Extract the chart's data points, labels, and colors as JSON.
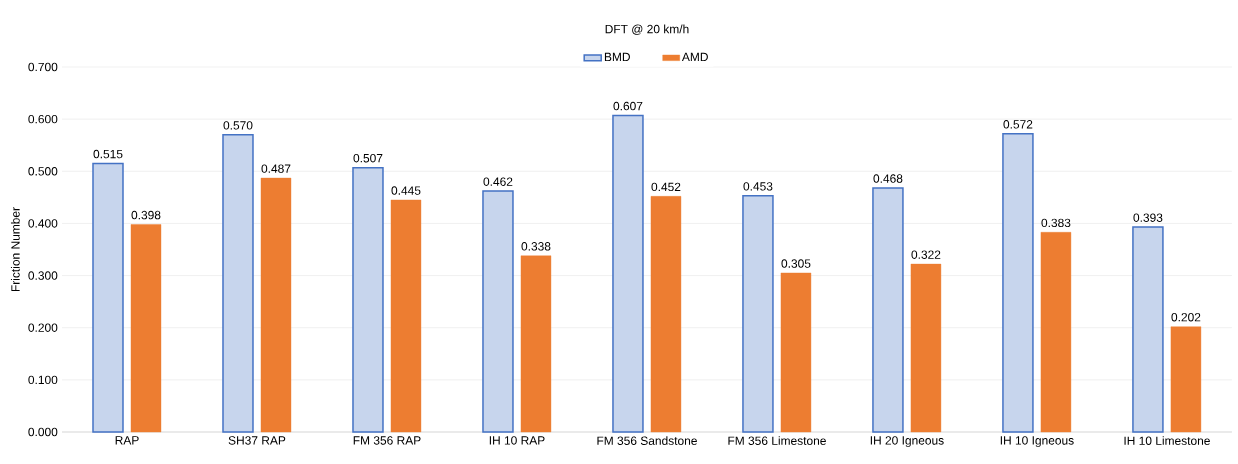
{
  "chart_data": {
    "type": "bar",
    "title": "DFT @ 20 km/h",
    "ylabel": "Friction Number",
    "categories": [
      "RAP",
      "SH37 RAP",
      "FM 356 RAP",
      "IH 10 RAP",
      "FM 356 Sandstone",
      "FM 356 Limestone",
      "IH 20 Igneous",
      "IH 10 Igneous",
      "IH 10 Limestone"
    ],
    "series": [
      {
        "name": "BMD",
        "color": "#4472c4",
        "values": [
          0.515,
          0.57,
          0.507,
          0.462,
          0.607,
          0.453,
          0.468,
          0.572,
          0.393
        ],
        "value_labels": [
          "0.515",
          "0.570",
          "0.507",
          "0.462",
          "0.607",
          "0.453",
          "0.468",
          "0.572",
          "0.393"
        ]
      },
      {
        "name": "AMD",
        "color": "#ed7d31",
        "values": [
          0.398,
          0.487,
          0.445,
          0.338,
          0.452,
          0.305,
          0.322,
          0.383,
          0.202
        ],
        "value_labels": [
          "0.398",
          "0.487",
          "0.445",
          "0.338",
          "0.452",
          "0.305",
          "0.322",
          "0.383",
          "0.202"
        ]
      }
    ],
    "ylim": [
      0,
      0.7
    ],
    "yticks": [
      {
        "value": 0,
        "label": "0.000"
      },
      {
        "value": 0.1,
        "label": "0.100"
      },
      {
        "value": 0.2,
        "label": "0.200"
      },
      {
        "value": 0.3,
        "label": "0.300"
      },
      {
        "value": 0.4,
        "label": "0.400"
      },
      {
        "value": 0.5,
        "label": "0.500"
      },
      {
        "value": 0.6,
        "label": "0.600"
      },
      {
        "value": 0.7,
        "label": "0.700"
      }
    ],
    "grid": "y",
    "legend": "top"
  }
}
